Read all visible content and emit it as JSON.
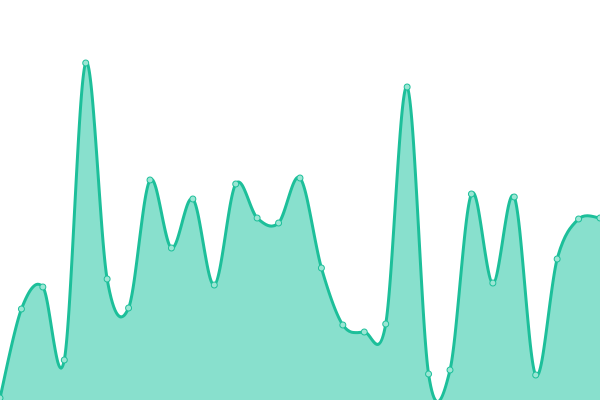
{
  "chart_data": {
    "type": "area",
    "title": "",
    "xlabel": "",
    "ylabel": "",
    "x": [
      0,
      1,
      2,
      3,
      4,
      5,
      6,
      7,
      8,
      9,
      10,
      11,
      12,
      13,
      14,
      15,
      16,
      17,
      18,
      19,
      20,
      21,
      22,
      23,
      24,
      25,
      26,
      27,
      28
    ],
    "values": [
      2,
      91,
      113,
      40,
      337,
      121,
      92,
      220,
      152,
      201,
      115,
      216,
      182,
      177,
      222,
      132,
      75,
      68,
      76,
      313,
      26,
      30,
      206,
      117,
      203,
      25,
      141,
      181,
      182
    ],
    "ylim": [
      0,
      400
    ],
    "grid": false,
    "axes_visible": false,
    "curve": "smooth",
    "markers": true,
    "colors": {
      "line": "#1dbf9a",
      "fill": "#88e0cd",
      "marker_fill": "#9be6d4",
      "marker_stroke": "#1dbf9a"
    }
  }
}
